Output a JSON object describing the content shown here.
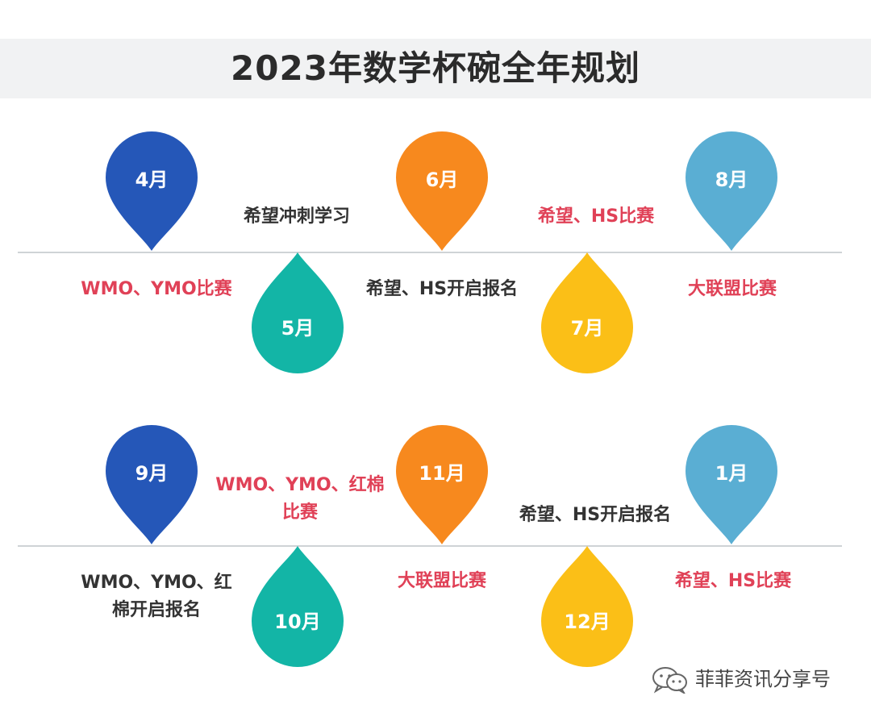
{
  "title": "2023年数学杯碗全年规划",
  "months": {
    "apr": "4月",
    "may": "5月",
    "jun": "6月",
    "jul": "7月",
    "aug": "8月",
    "sep": "9月",
    "oct": "10月",
    "nov": "11月",
    "dec": "12月",
    "jan": "1月"
  },
  "events": {
    "apr": "WMO、YMO比赛",
    "may": "希望冲刺学习",
    "jun": "希望、HS开启报名",
    "jul": "希望、HS比赛",
    "aug": "大联盟比赛",
    "sep_line1": "WMO、YMO、红",
    "sep_line2": "棉开启报名",
    "oct_line1": "WMO、YMO、红棉",
    "oct_line2": "比赛",
    "nov": "大联盟比赛",
    "dec": "希望、HS开启报名",
    "jan": "希望、HS比赛"
  },
  "watermark": {
    "text": "菲菲资讯分享号",
    "icon": "wechat-icon"
  },
  "colors": {
    "navy": "#2557b8",
    "teal": "#13b5a6",
    "orange": "#f7891e",
    "yellow": "#fbbf17",
    "skyblue": "#5aaed3",
    "red_text": "#e04157",
    "dark_text": "#333333"
  }
}
